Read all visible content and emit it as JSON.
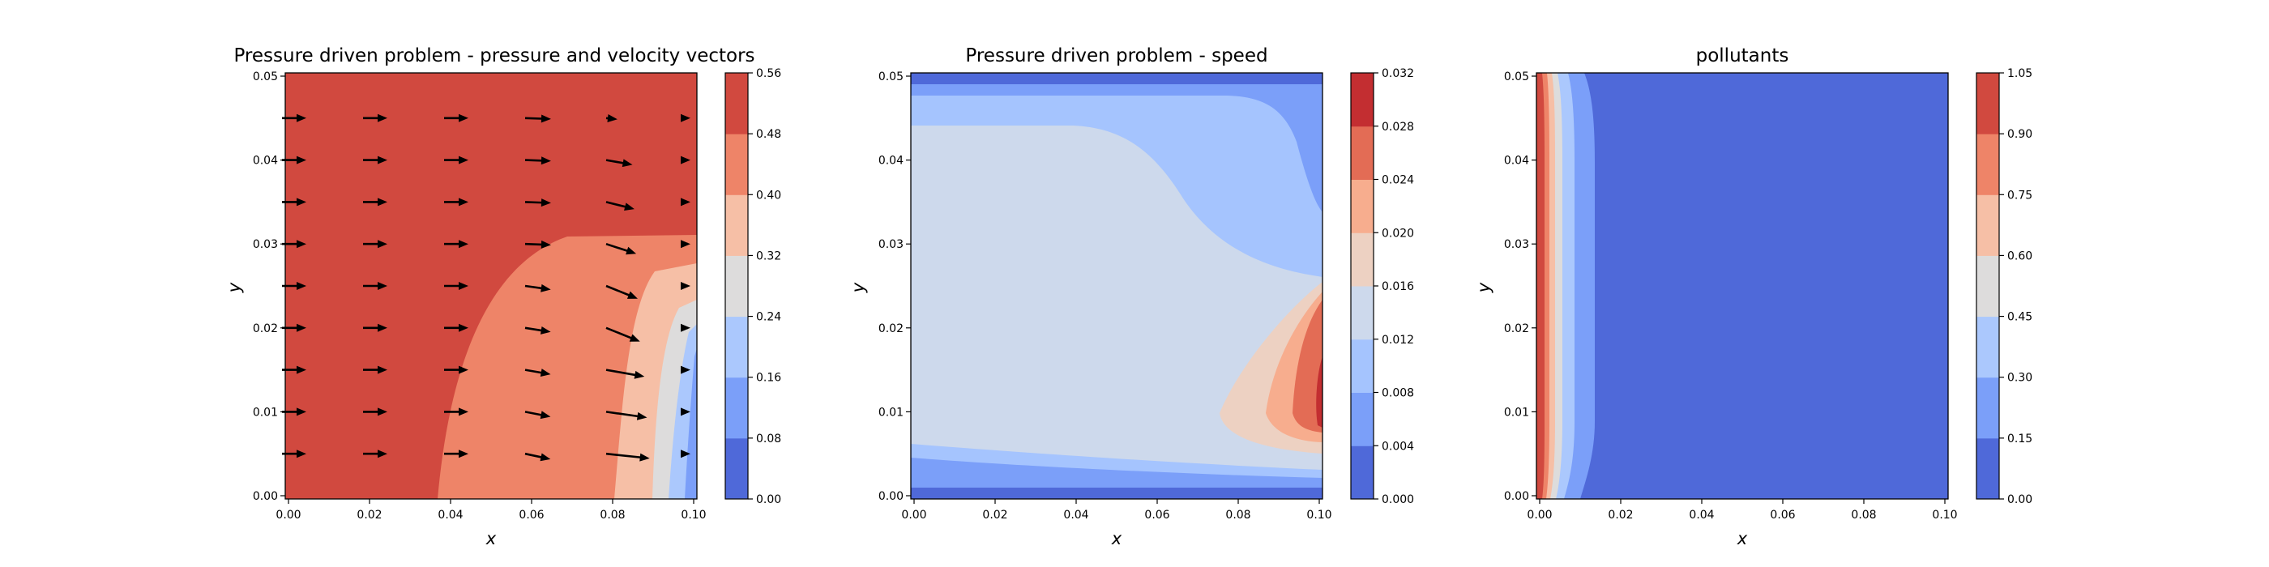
{
  "chart_data": [
    {
      "type": "contour",
      "title": "Pressure driven problem - pressure and velocity vectors",
      "xlabel": "x",
      "ylabel": "y",
      "xlim": [
        0,
        0.1
      ],
      "ylim": [
        0,
        0.05
      ],
      "xticks": [
        "0.00",
        "0.02",
        "0.04",
        "0.06",
        "0.08",
        "0.10"
      ],
      "yticks": [
        "0.00",
        "0.01",
        "0.02",
        "0.03",
        "0.04",
        "0.05"
      ],
      "colorbar": {
        "levels": [
          0.0,
          0.08,
          0.16,
          0.24,
          0.32,
          0.4,
          0.48,
          0.56
        ],
        "labels": [
          "0.00",
          "0.08",
          "0.16",
          "0.24",
          "0.32",
          "0.40",
          "0.48",
          "0.56"
        ],
        "colors": [
          "#4f69d9",
          "#7b9ff9",
          "#abc8fd",
          "#dddcdc",
          "#f6bfa6",
          "#ee8468",
          "#d1493f"
        ]
      },
      "vectors": "velocity arrows on a regular grid"
    },
    {
      "type": "contour",
      "title": "Pressure driven problem - speed",
      "xlabel": "x",
      "ylabel": "y",
      "xlim": [
        0,
        0.1
      ],
      "ylim": [
        0,
        0.05
      ],
      "xticks": [
        "0.00",
        "0.02",
        "0.04",
        "0.06",
        "0.08",
        "0.10"
      ],
      "yticks": [
        "0.00",
        "0.01",
        "0.02",
        "0.03",
        "0.04",
        "0.05"
      ],
      "colorbar": {
        "levels": [
          0.0,
          0.004,
          0.008,
          0.012,
          0.016,
          0.02,
          0.024,
          0.028,
          0.032
        ],
        "labels": [
          "0.000",
          "0.004",
          "0.008",
          "0.012",
          "0.016",
          "0.020",
          "0.024",
          "0.028",
          "0.032"
        ],
        "colors": [
          "#4f69d9",
          "#7b9ff9",
          "#a5c4fe",
          "#cdd9ec",
          "#edd1c2",
          "#f7ad8e",
          "#e36c55",
          "#c32e31"
        ]
      }
    },
    {
      "type": "contour",
      "title": "pollutants",
      "xlabel": "x",
      "ylabel": "y",
      "xlim": [
        0,
        0.1
      ],
      "ylim": [
        0,
        0.05
      ],
      "xticks": [
        "0.00",
        "0.02",
        "0.04",
        "0.06",
        "0.08",
        "0.10"
      ],
      "yticks": [
        "0.00",
        "0.01",
        "0.02",
        "0.03",
        "0.04",
        "0.05"
      ],
      "colorbar": {
        "levels": [
          0.0,
          0.15,
          0.3,
          0.45,
          0.6,
          0.75,
          0.9,
          1.05
        ],
        "labels": [
          "0.00",
          "0.15",
          "0.30",
          "0.45",
          "0.60",
          "0.75",
          "0.90",
          "1.05"
        ],
        "colors": [
          "#4f69d9",
          "#7b9ff9",
          "#abc8fd",
          "#dddcdc",
          "#f6bfa6",
          "#ee8468",
          "#d1493f"
        ]
      }
    }
  ]
}
